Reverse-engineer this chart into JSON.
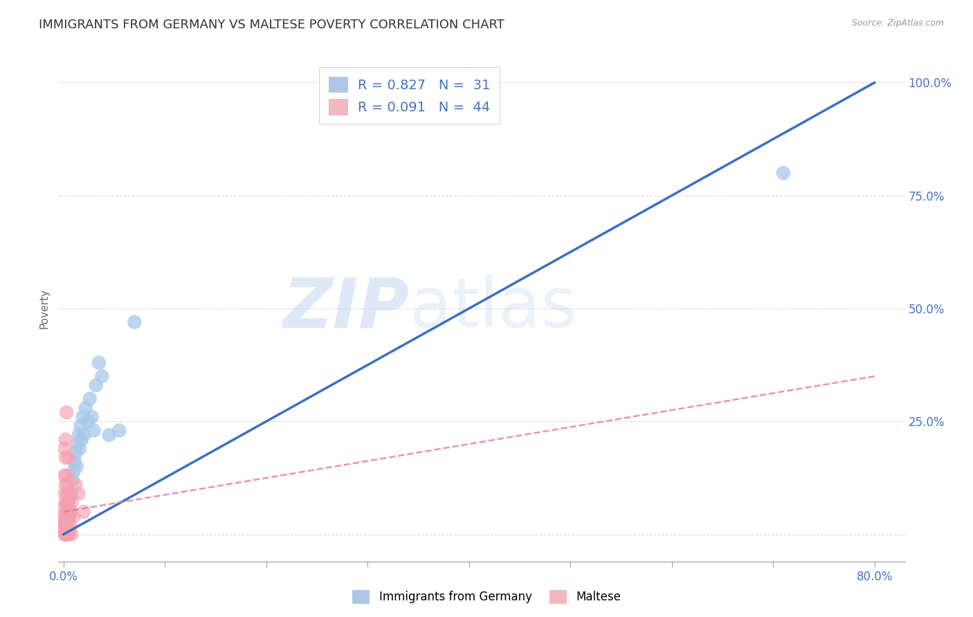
{
  "title": "IMMIGRANTS FROM GERMANY VS MALTESE POVERTY CORRELATION CHART",
  "source": "Source: ZipAtlas.com",
  "ylabel": "Poverty",
  "legend_entries": [
    {
      "label": "Immigrants from Germany",
      "color": "#aec6e8",
      "R": "0.827",
      "N": "31"
    },
    {
      "label": "Maltese",
      "color": "#f4b8c1",
      "R": "0.091",
      "N": "44"
    }
  ],
  "blue_scatter": [
    [
      0.002,
      0.02
    ],
    [
      0.003,
      0.03
    ],
    [
      0.004,
      0.04
    ],
    [
      0.005,
      0.06
    ],
    [
      0.006,
      0.08
    ],
    [
      0.007,
      0.05
    ],
    [
      0.008,
      0.09
    ],
    [
      0.009,
      0.12
    ],
    [
      0.01,
      0.14
    ],
    [
      0.011,
      0.16
    ],
    [
      0.012,
      0.18
    ],
    [
      0.013,
      0.15
    ],
    [
      0.014,
      0.2
    ],
    [
      0.015,
      0.22
    ],
    [
      0.016,
      0.19
    ],
    [
      0.017,
      0.24
    ],
    [
      0.018,
      0.21
    ],
    [
      0.019,
      0.26
    ],
    [
      0.02,
      0.22
    ],
    [
      0.022,
      0.28
    ],
    [
      0.024,
      0.25
    ],
    [
      0.026,
      0.3
    ],
    [
      0.028,
      0.26
    ],
    [
      0.03,
      0.23
    ],
    [
      0.032,
      0.33
    ],
    [
      0.035,
      0.38
    ],
    [
      0.038,
      0.35
    ],
    [
      0.045,
      0.22
    ],
    [
      0.055,
      0.23
    ],
    [
      0.07,
      0.47
    ],
    [
      0.71,
      0.8
    ]
  ],
  "pink_scatter": [
    [
      0.0,
      0.02
    ],
    [
      0.0,
      0.04
    ],
    [
      0.001,
      0.01
    ],
    [
      0.001,
      0.03
    ],
    [
      0.001,
      0.06
    ],
    [
      0.001,
      0.09
    ],
    [
      0.001,
      0.13
    ],
    [
      0.001,
      0.19
    ],
    [
      0.001,
      0.0
    ],
    [
      0.001,
      0.02
    ],
    [
      0.002,
      0.07
    ],
    [
      0.002,
      0.11
    ],
    [
      0.002,
      0.04
    ],
    [
      0.002,
      0.02
    ],
    [
      0.002,
      0.17
    ],
    [
      0.002,
      0.21
    ],
    [
      0.002,
      0.0
    ],
    [
      0.003,
      0.05
    ],
    [
      0.003,
      0.13
    ],
    [
      0.003,
      0.01
    ],
    [
      0.003,
      0.07
    ],
    [
      0.003,
      0.04
    ],
    [
      0.003,
      0.27
    ],
    [
      0.003,
      0.0
    ],
    [
      0.004,
      0.02
    ],
    [
      0.004,
      0.09
    ],
    [
      0.004,
      0.04
    ],
    [
      0.004,
      0.11
    ],
    [
      0.004,
      0.0
    ],
    [
      0.005,
      0.03
    ],
    [
      0.005,
      0.07
    ],
    [
      0.005,
      0.01
    ],
    [
      0.005,
      0.17
    ],
    [
      0.005,
      0.0
    ],
    [
      0.006,
      0.04
    ],
    [
      0.006,
      0.09
    ],
    [
      0.007,
      0.05
    ],
    [
      0.007,
      0.02
    ],
    [
      0.008,
      0.07
    ],
    [
      0.008,
      0.0
    ],
    [
      0.01,
      0.04
    ],
    [
      0.012,
      0.11
    ],
    [
      0.015,
      0.09
    ],
    [
      0.02,
      0.05
    ]
  ],
  "blue_line": [
    [
      0.0,
      0.0
    ],
    [
      0.8,
      1.0
    ]
  ],
  "pink_line": [
    [
      0.0,
      0.05
    ],
    [
      0.8,
      0.35
    ]
  ],
  "xlim": [
    -0.005,
    0.83
  ],
  "ylim": [
    -0.06,
    1.06
  ],
  "xticks": [
    0.0,
    0.1,
    0.2,
    0.3,
    0.4,
    0.5,
    0.6,
    0.7,
    0.8
  ],
  "ytick_positions": [
    0.0,
    0.25,
    0.5,
    0.75,
    1.0
  ],
  "ytick_labels": [
    "",
    "25.0%",
    "50.0%",
    "75.0%",
    "100.0%"
  ],
  "blue_line_color": "#3a6fc4",
  "pink_line_color": "#e07090",
  "blue_scatter_color": "#a8c8ea",
  "pink_scatter_color": "#f4a0b0",
  "grid_color": "#d0d0d0",
  "background_color": "#ffffff",
  "watermark_zip": "ZIP",
  "watermark_atlas": "atlas"
}
